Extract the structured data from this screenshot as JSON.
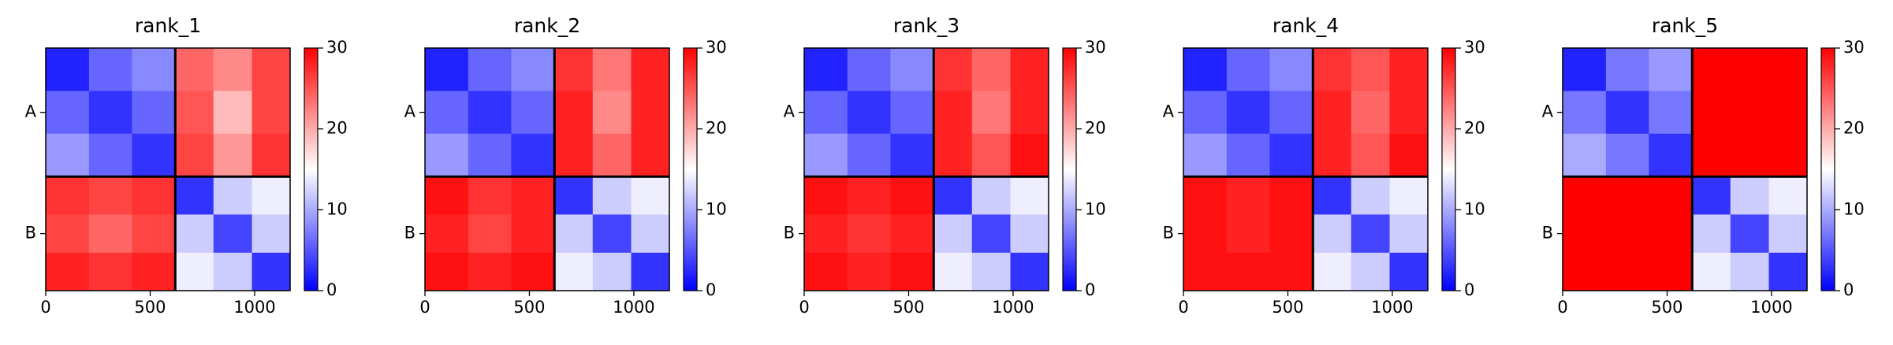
{
  "chart_data": [
    {
      "type": "heatmap",
      "title": "rank_1",
      "colormap": "bwr",
      "bins": [
        0,
        207,
        413,
        620,
        803,
        987,
        1170
      ],
      "values": [
        [
          2,
          6,
          8,
          24,
          22,
          26
        ],
        [
          6,
          3,
          6,
          25,
          19,
          26
        ],
        [
          9,
          6,
          3,
          26,
          21,
          27
        ],
        [
          27,
          26,
          27,
          3,
          12,
          14
        ],
        [
          26,
          24,
          26,
          12,
          4,
          12
        ],
        [
          28,
          27,
          28,
          14,
          12,
          3
        ]
      ],
      "xlim": [
        0,
        1170
      ],
      "ylim": [
        1170,
        0
      ],
      "xticks": [
        0,
        500,
        1000
      ],
      "yticks": [
        {
          "value": 310,
          "label": "A"
        },
        {
          "value": 895,
          "label": "B"
        }
      ],
      "chain_breaks": [
        620
      ],
      "clim": [
        0,
        30
      ],
      "cticks": [
        0,
        10,
        20,
        30
      ]
    },
    {
      "type": "heatmap",
      "title": "rank_2",
      "colormap": "bwr",
      "bins": [
        0,
        207,
        413,
        620,
        803,
        987,
        1170
      ],
      "values": [
        [
          2,
          6,
          8,
          27,
          23,
          28
        ],
        [
          6,
          3,
          6,
          28,
          22,
          28
        ],
        [
          9,
          6,
          3,
          28,
          24,
          28
        ],
        [
          29,
          27,
          28,
          3,
          12,
          14
        ],
        [
          28,
          26,
          28,
          12,
          4,
          12
        ],
        [
          29,
          28,
          29,
          14,
          12,
          3
        ]
      ],
      "xlim": [
        0,
        1170
      ],
      "ylim": [
        1170,
        0
      ],
      "xticks": [
        0,
        500,
        1000
      ],
      "yticks": [
        {
          "value": 310,
          "label": "A"
        },
        {
          "value": 895,
          "label": "B"
        }
      ],
      "chain_breaks": [
        620
      ],
      "clim": [
        0,
        30
      ],
      "cticks": [
        0,
        10,
        20,
        30
      ]
    },
    {
      "type": "heatmap",
      "title": "rank_3",
      "colormap": "bwr",
      "bins": [
        0,
        207,
        413,
        620,
        803,
        987,
        1170
      ],
      "values": [
        [
          2,
          6,
          8,
          27,
          24,
          28
        ],
        [
          6,
          3,
          6,
          28,
          23,
          28
        ],
        [
          9,
          6,
          3,
          28,
          25,
          29
        ],
        [
          29,
          28,
          29,
          3,
          12,
          14
        ],
        [
          28,
          27,
          28,
          12,
          4,
          12
        ],
        [
          29,
          28,
          29,
          14,
          12,
          3
        ]
      ],
      "xlim": [
        0,
        1170
      ],
      "ylim": [
        1170,
        0
      ],
      "xticks": [
        0,
        500,
        1000
      ],
      "yticks": [
        {
          "value": 310,
          "label": "A"
        },
        {
          "value": 895,
          "label": "B"
        }
      ],
      "chain_breaks": [
        620
      ],
      "clim": [
        0,
        30
      ],
      "cticks": [
        0,
        10,
        20,
        30
      ]
    },
    {
      "type": "heatmap",
      "title": "rank_4",
      "colormap": "bwr",
      "bins": [
        0,
        207,
        413,
        620,
        803,
        987,
        1170
      ],
      "values": [
        [
          2,
          6,
          8,
          27,
          25,
          28
        ],
        [
          6,
          3,
          6,
          28,
          24,
          28
        ],
        [
          9,
          6,
          3,
          28,
          25,
          29
        ],
        [
          29,
          28,
          29,
          3,
          12,
          14
        ],
        [
          29,
          28,
          29,
          12,
          4,
          12
        ],
        [
          29,
          29,
          29,
          14,
          12,
          3
        ]
      ],
      "xlim": [
        0,
        1170
      ],
      "ylim": [
        1170,
        0
      ],
      "xticks": [
        0,
        500,
        1000
      ],
      "yticks": [
        {
          "value": 310,
          "label": "A"
        },
        {
          "value": 895,
          "label": "B"
        }
      ],
      "chain_breaks": [
        620
      ],
      "clim": [
        0,
        30
      ],
      "cticks": [
        0,
        10,
        20,
        30
      ]
    },
    {
      "type": "heatmap",
      "title": "rank_5",
      "colormap": "bwr",
      "bins": [
        0,
        207,
        413,
        620,
        803,
        987,
        1170
      ],
      "values": [
        [
          2,
          7,
          9,
          30,
          30,
          30
        ],
        [
          7,
          3,
          7,
          30,
          30,
          30
        ],
        [
          10,
          7,
          3,
          30,
          30,
          30
        ],
        [
          30,
          30,
          30,
          3,
          12,
          14
        ],
        [
          30,
          30,
          30,
          12,
          4,
          12
        ],
        [
          30,
          30,
          30,
          14,
          12,
          3
        ]
      ],
      "xlim": [
        0,
        1170
      ],
      "ylim": [
        1170,
        0
      ],
      "xticks": [
        0,
        500,
        1000
      ],
      "yticks": [
        {
          "value": 310,
          "label": "A"
        },
        {
          "value": 895,
          "label": "B"
        }
      ],
      "chain_breaks": [
        620
      ],
      "clim": [
        0,
        30
      ],
      "cticks": [
        0,
        10,
        20,
        30
      ]
    }
  ]
}
